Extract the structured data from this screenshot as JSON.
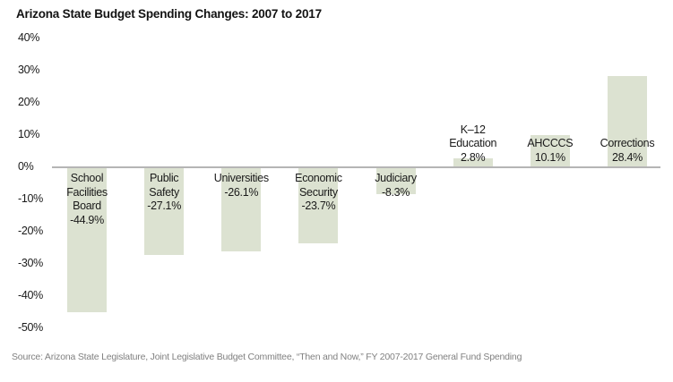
{
  "title": "Arizona State Budget Spending Changes: 2007 to 2017",
  "source_note": "Source: Arizona State Legislature, Joint Legislative Budget Committee, “Then and Now,” FY 2007-2017 General Fund Spending",
  "colors": {
    "bar_fill": "#dce2d1",
    "axis_line": "#b5b5b5",
    "label_text": "#1a1a1a",
    "source_text": "#818181"
  },
  "chart_data": {
    "type": "bar",
    "title": "Arizona State Budget Spending Changes: 2007 to 2017",
    "categories": [
      "School Facilities Board",
      "Public Safety",
      "Universities",
      "Economic Security",
      "Judiciary",
      "K–12 Education",
      "AHCCCS",
      "Corrections"
    ],
    "values": [
      -44.9,
      -27.1,
      -26.1,
      -23.7,
      -8.3,
      2.8,
      10.1,
      28.4
    ],
    "value_labels": [
      "-44.9%",
      "-27.1%",
      "-26.1%",
      "-23.7%",
      "-8.3%",
      "2.8%",
      "10.1%",
      "28.4%"
    ],
    "label_lines": [
      [
        "School",
        "Facilities",
        "Board"
      ],
      [
        "Public",
        "Safety"
      ],
      [
        "Universities"
      ],
      [
        "Economic",
        "Security"
      ],
      [
        "Judiciary"
      ],
      [
        "K–12",
        "Education"
      ],
      [
        "AHCCCS"
      ],
      [
        "Corrections"
      ]
    ],
    "xlabel": "",
    "ylabel": "",
    "ylim": [
      -50,
      40
    ],
    "yticks": [
      40,
      30,
      20,
      10,
      0,
      -10,
      -20,
      -30,
      -40,
      -50
    ],
    "ytick_labels": [
      "40%",
      "30%",
      "20%",
      "10%",
      "0%",
      "-10%",
      "-20%",
      "-30%",
      "-40%",
      "-50%"
    ],
    "grid": "zero-line-only",
    "legend": "none",
    "value_label_position": "adjacent-to-baseline"
  }
}
